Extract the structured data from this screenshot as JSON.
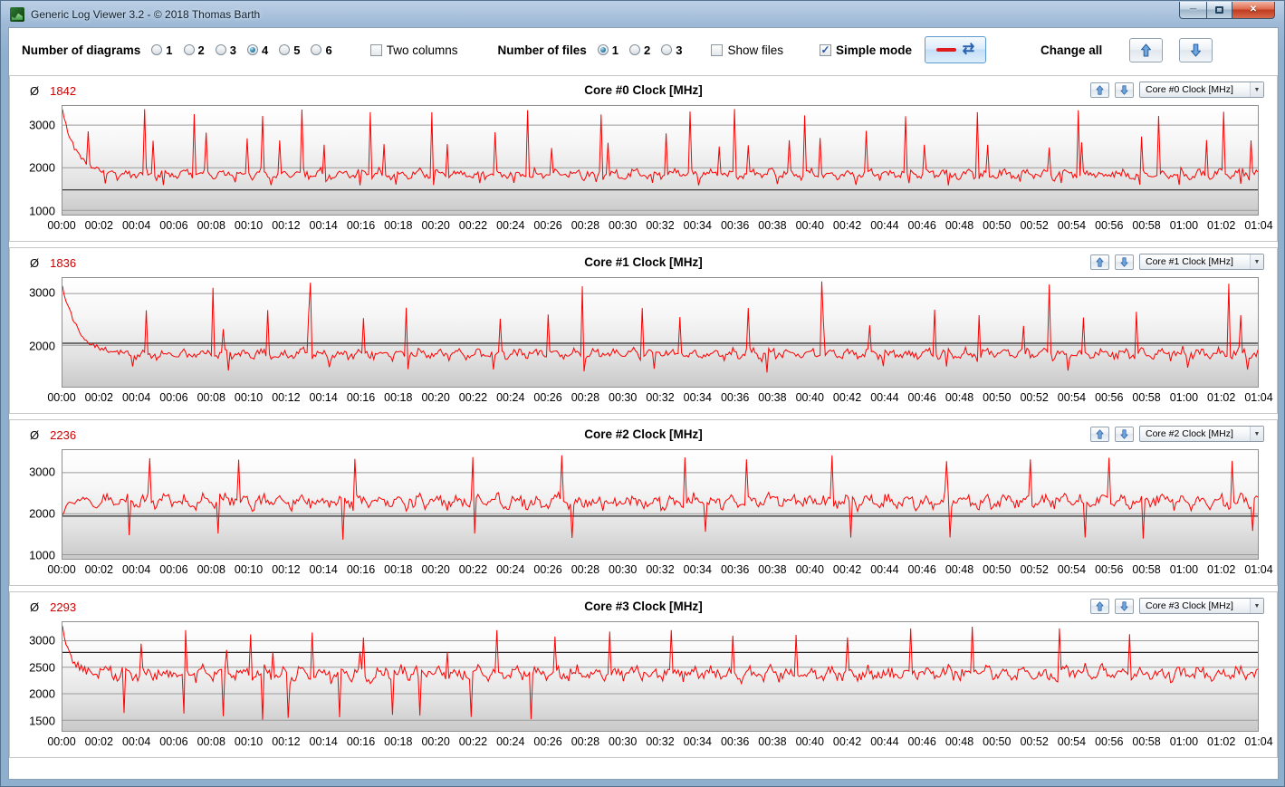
{
  "window": {
    "title": "Generic Log Viewer 3.2 - © 2018 Thomas Barth"
  },
  "icons": {
    "refresh": "⇄",
    "close": "✕",
    "minimize": "─",
    "dropdown": "▼",
    "check": "✓"
  },
  "toolbar": {
    "diagrams_label": "Number of diagrams",
    "diagram_options": [
      "1",
      "2",
      "3",
      "4",
      "5",
      "6"
    ],
    "diagrams_selected": "4",
    "two_columns_label": "Two columns",
    "two_columns_checked": false,
    "files_label": "Number of files",
    "file_options": [
      "1",
      "2",
      "3"
    ],
    "files_selected": "1",
    "show_files_label": "Show files",
    "show_files_checked": false,
    "simple_mode_label": "Simple mode",
    "simple_mode_checked": true,
    "change_all_label": "Change all"
  },
  "colors": {
    "trace": "#ff0000",
    "avg_value": "#cc0000",
    "grid": "#9a9a9a",
    "marker": "#2a2a2a"
  },
  "x_ticks": [
    "00:00",
    "00:02",
    "00:04",
    "00:06",
    "00:08",
    "00:10",
    "00:12",
    "00:14",
    "00:16",
    "00:18",
    "00:20",
    "00:22",
    "00:24",
    "00:26",
    "00:28",
    "00:30",
    "00:32",
    "00:34",
    "00:36",
    "00:38",
    "00:40",
    "00:42",
    "00:44",
    "00:46",
    "00:48",
    "00:50",
    "00:52",
    "00:54",
    "00:56",
    "00:58",
    "01:00",
    "01:02",
    "01:04"
  ],
  "chart_data": [
    {
      "type": "line",
      "title": "Core #0 Clock [MHz]",
      "avg_symbol": "Ø",
      "avg": "1842",
      "combo_value": "Core #0 Clock [MHz]",
      "ylim": [
        900,
        3450
      ],
      "yticks": [
        3000,
        2000,
        1000
      ],
      "marker_line": 1480,
      "series": {
        "seed": 101,
        "n": 700,
        "base": 1850,
        "wave": 90,
        "noise": 110,
        "start_value": 3350,
        "start_decay": 8,
        "spike_min": 3200,
        "spike_max": 3380,
        "spike_gap_min": 22,
        "spike_gap_var": 38,
        "minor_spike_min": 2450,
        "minor_spike_max": 2900,
        "minor_gap_min": 15,
        "minor_gap_var": 25,
        "dip_min": 1580,
        "dip_max": 1680,
        "dip_gap_min": 20,
        "dip_gap_var": 30
      }
    },
    {
      "type": "line",
      "title": "Core #1 Clock [MHz]",
      "avg_symbol": "Ø",
      "avg": "1836",
      "combo_value": "Core #1 Clock [MHz]",
      "ylim": [
        1200,
        3300
      ],
      "yticks": [
        3000,
        2000
      ],
      "marker_line": 2040,
      "series": {
        "seed": 202,
        "n": 700,
        "base": 1830,
        "wave": 80,
        "noise": 100,
        "start_value": 3150,
        "start_decay": 9,
        "spike_min": 3100,
        "spike_max": 3300,
        "spike_gap_min": 35,
        "spike_gap_var": 150,
        "minor_spike_min": 2300,
        "minor_spike_max": 2750,
        "minor_gap_min": 22,
        "minor_gap_var": 40,
        "dip_min": 1450,
        "dip_max": 1600,
        "dip_gap_min": 30,
        "dip_gap_var": 45
      }
    },
    {
      "type": "line",
      "title": "Core #2 Clock [MHz]",
      "avg_symbol": "Ø",
      "avg": "2236",
      "combo_value": "Core #2 Clock [MHz]",
      "ylim": [
        900,
        3550
      ],
      "yticks": [
        3000,
        2000,
        1000
      ],
      "marker_line": 1940,
      "series": {
        "seed": 303,
        "n": 700,
        "base": 2300,
        "wave": 140,
        "noise": 180,
        "start_value": 2000,
        "start_decay": 3,
        "spike_min": 3250,
        "spike_max": 3450,
        "spike_gap_min": 26,
        "spike_gap_var": 48,
        "minor_spike_min": 2800,
        "minor_spike_max": 3050,
        "minor_gap_min": 20,
        "minor_gap_var": 35,
        "dip_min": 1300,
        "dip_max": 1650,
        "dip_gap_min": 32,
        "dip_gap_var": 55
      }
    },
    {
      "type": "line",
      "title": "Core #3 Clock [MHz]",
      "avg_symbol": "Ø",
      "avg": "2293",
      "combo_value": "Core #3 Clock [MHz]",
      "ylim": [
        1300,
        3350
      ],
      "yticks": [
        3000,
        2500,
        2000,
        1500
      ],
      "marker_line": 2780,
      "series": {
        "seed": 404,
        "n": 700,
        "base": 2380,
        "wave": 100,
        "noise": 140,
        "start_value": 3250,
        "start_decay": 5,
        "spike_min": 3050,
        "spike_max": 3280,
        "spike_gap_min": 28,
        "spike_gap_var": 52,
        "minor_spike_min": 2750,
        "minor_spike_max": 2950,
        "minor_gap_min": 25,
        "minor_gap_var": 45,
        "dip_min": 1480,
        "dip_max": 1750,
        "dip_gap_min": 13,
        "dip_gap_var": 24
      }
    }
  ]
}
